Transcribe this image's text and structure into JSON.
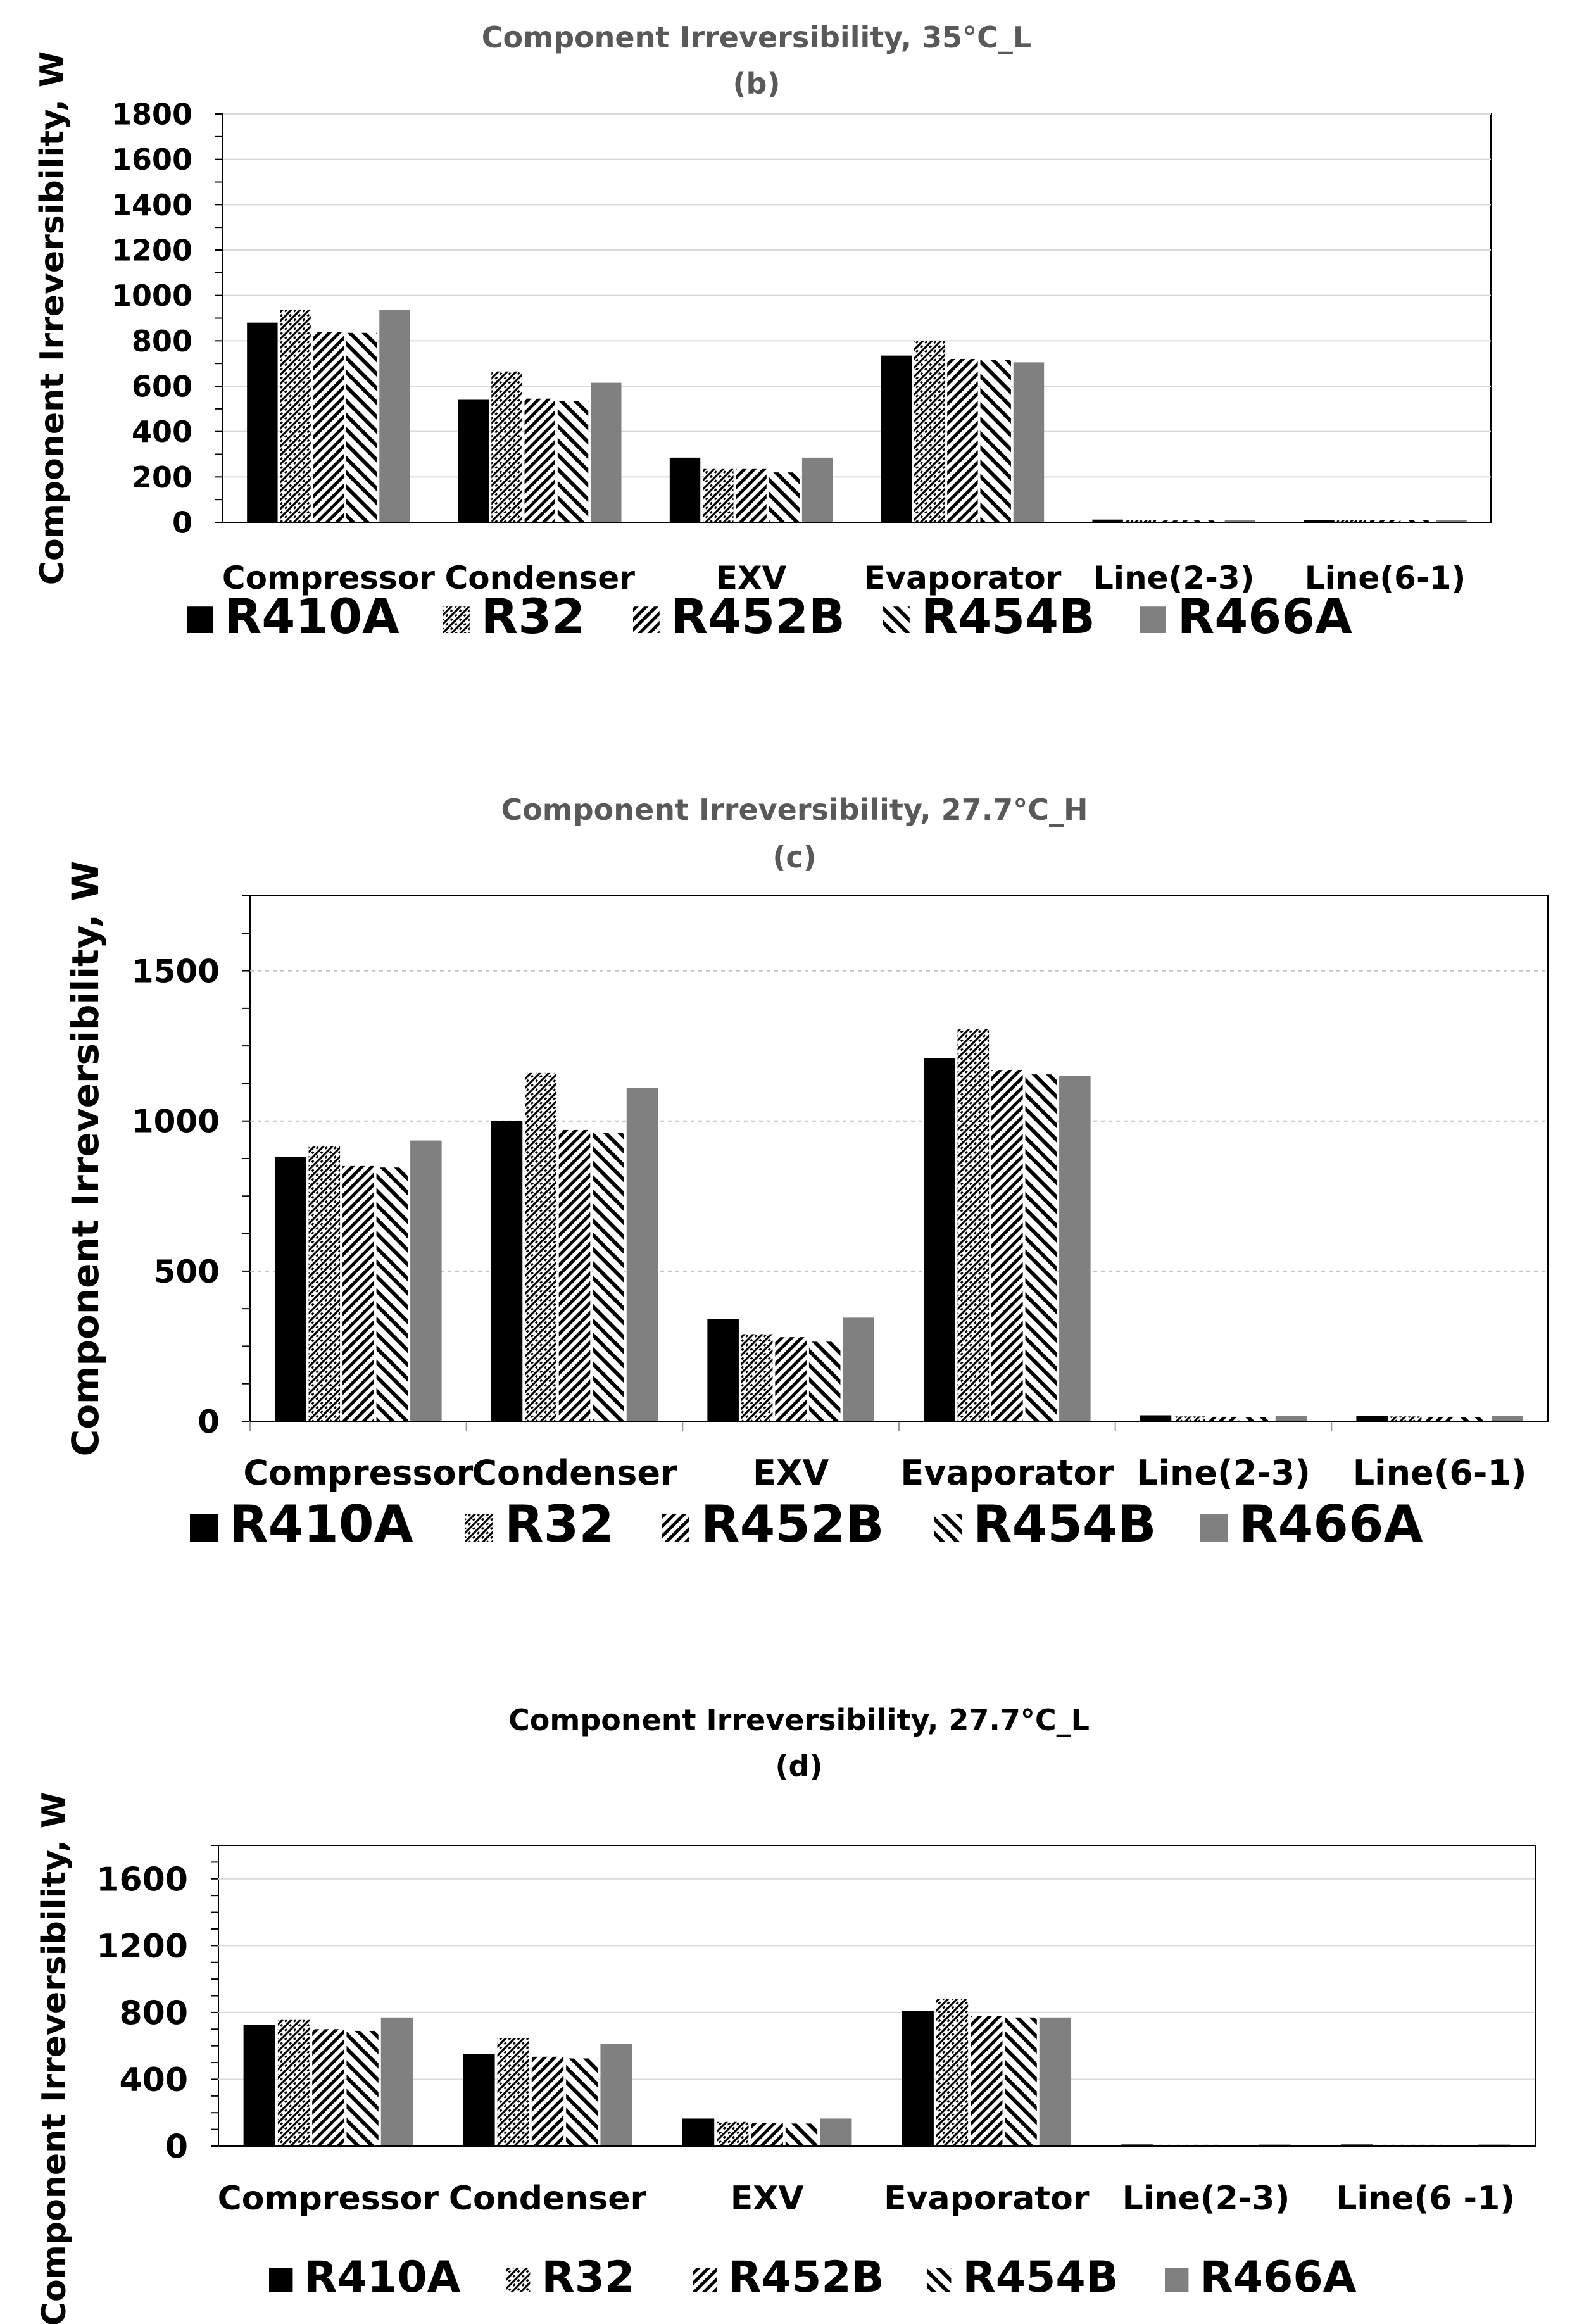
{
  "series_styles": [
    {
      "name": "R410A",
      "fill": "#000000",
      "pattern": "solid"
    },
    {
      "name": "R32",
      "fill": "#000000",
      "pattern": "weave"
    },
    {
      "name": "R452B",
      "fill": "#000000",
      "pattern": "wide-diag"
    },
    {
      "name": "R454B",
      "fill": "#000000",
      "pattern": "back-diag"
    },
    {
      "name": "R466A",
      "fill": "#808080",
      "pattern": "solid"
    }
  ],
  "chart_data": [
    {
      "type": "bar",
      "title": "Component Irreversibility, 35°C_L",
      "subtitle": "(b)",
      "xlabel": "",
      "ylabel": "Component Irreversibility, W",
      "ylim": [
        0,
        1800
      ],
      "yticks": [
        0,
        200,
        400,
        600,
        800,
        1000,
        1200,
        1400,
        1600,
        1800
      ],
      "grid": true,
      "categories": [
        "Compressor",
        "Condenser",
        "EXV",
        "Evaporator",
        "Line(2-3)",
        "Line(6-1)"
      ],
      "series": [
        {
          "name": "R410A",
          "values": [
            880,
            540,
            285,
            735,
            12,
            10
          ]
        },
        {
          "name": "R32",
          "values": [
            935,
            665,
            235,
            800,
            10,
            10
          ]
        },
        {
          "name": "R452B",
          "values": [
            840,
            545,
            235,
            720,
            8,
            9
          ]
        },
        {
          "name": "R454B",
          "values": [
            835,
            535,
            220,
            715,
            8,
            9
          ]
        },
        {
          "name": "R466A",
          "values": [
            935,
            615,
            285,
            705,
            11,
            10
          ]
        }
      ],
      "legend": "bottom"
    },
    {
      "type": "bar",
      "title": "Component Irreversibility, 27.7°C_H",
      "subtitle": "(c)",
      "xlabel": "",
      "ylabel": "Component Irreversibility, W",
      "ylim": [
        0,
        1750
      ],
      "yticks": [
        0,
        500,
        1000,
        1500
      ],
      "grid": true,
      "categories": [
        "Compressor",
        "Condenser",
        "EXV",
        "Evaporator",
        "Line(2-3)",
        "Line(6-1)"
      ],
      "series": [
        {
          "name": "R410A",
          "values": [
            880,
            1000,
            340,
            1210,
            20,
            18
          ]
        },
        {
          "name": "R32",
          "values": [
            915,
            1160,
            290,
            1305,
            16,
            16
          ]
        },
        {
          "name": "R452B",
          "values": [
            850,
            970,
            280,
            1170,
            15,
            15
          ]
        },
        {
          "name": "R454B",
          "values": [
            845,
            960,
            265,
            1155,
            14,
            14
          ]
        },
        {
          "name": "R466A",
          "values": [
            935,
            1110,
            345,
            1150,
            17,
            17
          ]
        }
      ],
      "legend": "bottom"
    },
    {
      "type": "bar",
      "title": "Component Irreversibility, 27.7°C_L",
      "subtitle": "(d)",
      "xlabel": "",
      "ylabel": "Component Irreversibility, W",
      "ylim": [
        0,
        1800
      ],
      "yticks": [
        0,
        400,
        800,
        1200,
        1600
      ],
      "grid": true,
      "categories": [
        "Compressor",
        "Condenser",
        "EXV",
        "Evaporator",
        "Line(2-3)",
        "Line(6 -1)"
      ],
      "series": [
        {
          "name": "R410A",
          "values": [
            725,
            550,
            165,
            810,
            10,
            10
          ]
        },
        {
          "name": "R32",
          "values": [
            755,
            645,
            145,
            880,
            8,
            8
          ]
        },
        {
          "name": "R452B",
          "values": [
            700,
            535,
            140,
            780,
            8,
            8
          ]
        },
        {
          "name": "R454B",
          "values": [
            690,
            525,
            135,
            770,
            7,
            7
          ]
        },
        {
          "name": "R466A",
          "values": [
            770,
            610,
            165,
            770,
            10,
            10
          ]
        }
      ],
      "legend": "bottom"
    }
  ]
}
